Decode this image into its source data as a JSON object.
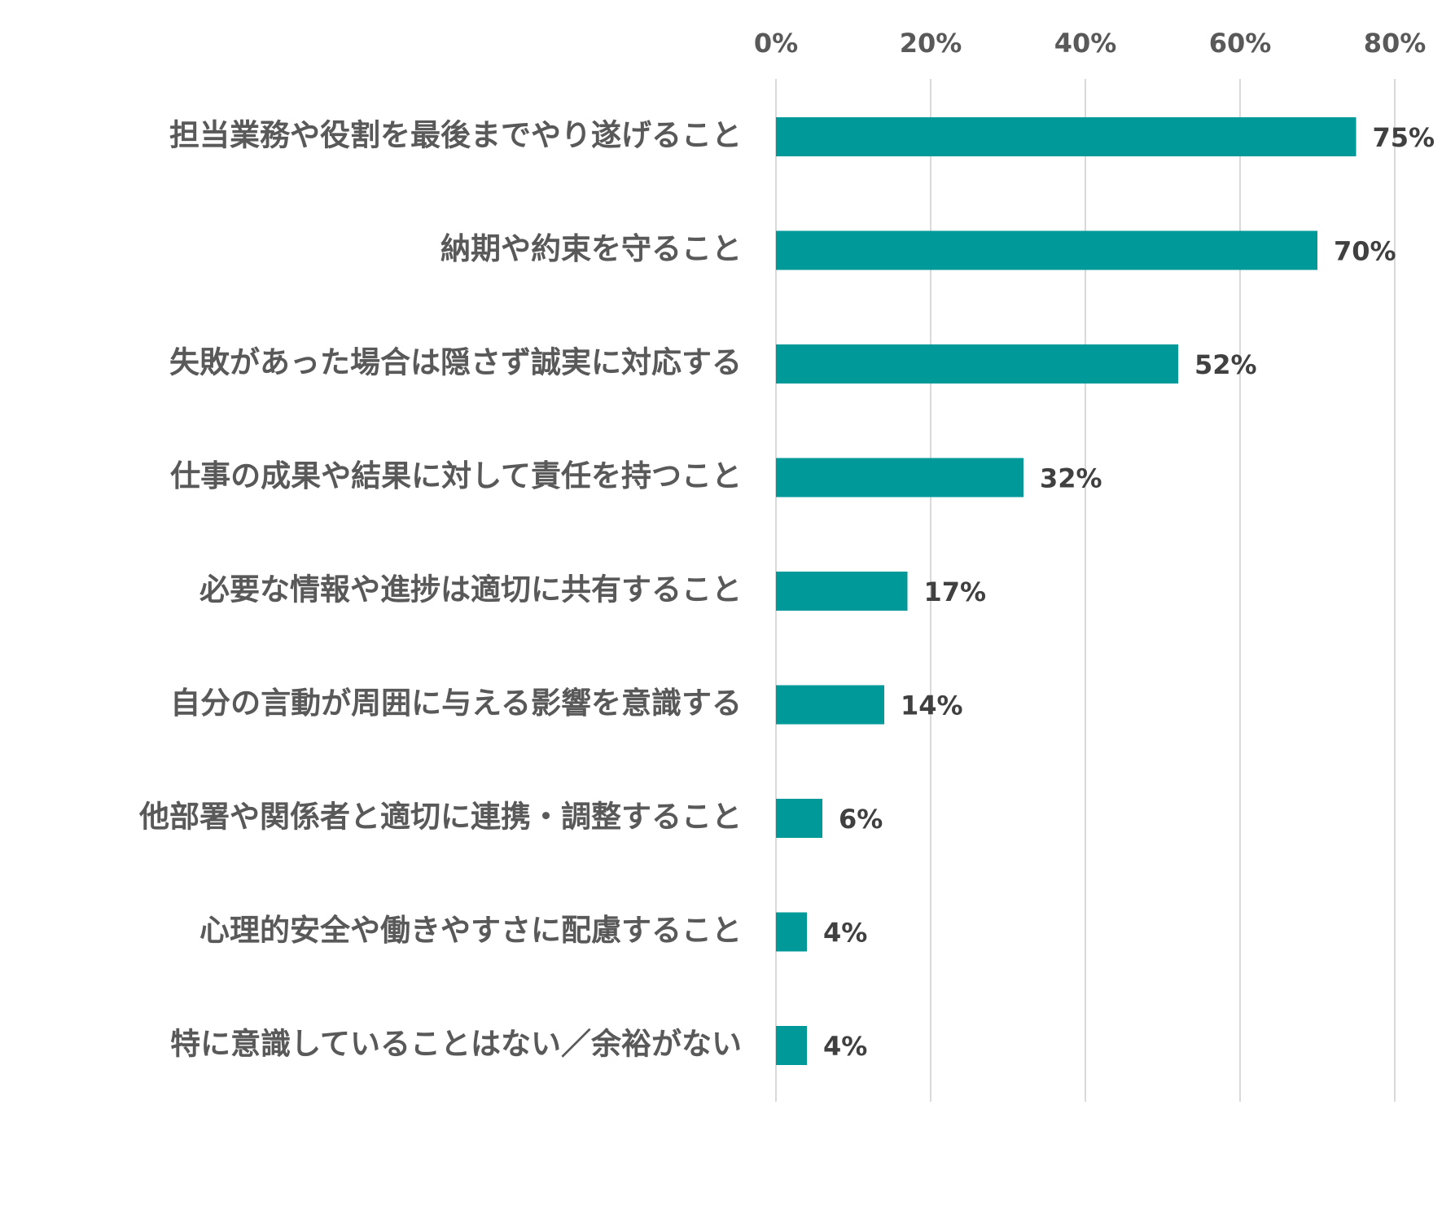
{
  "chart_data": {
    "type": "bar",
    "orientation": "horizontal",
    "categories": [
      "担当業務や役割を最後までやり遂げること",
      "納期や約束を守ること",
      "失敗があった場合は隠さず誠実に対応する",
      "仕事の成果や結果に対して責任を持つこと",
      "必要な情報や進捗は適切に共有すること",
      "自分の言動が周囲に与える影響を意識する",
      "他部署や関係者と適切に連携・調整すること",
      "心理的安全や働きやすさに配慮すること",
      "特に意識していることはない／余裕がない"
    ],
    "values": [
      75,
      70,
      52,
      32,
      17,
      14,
      6,
      4,
      4
    ],
    "value_labels": [
      "75%",
      "70%",
      "52%",
      "32%",
      "17%",
      "14%",
      "6%",
      "4%",
      "4%"
    ],
    "x_ticks": [
      0,
      20,
      40,
      60,
      80
    ],
    "x_tick_labels": [
      "0%",
      "20%",
      "40%",
      "60%",
      "80%"
    ],
    "xlim": [
      0,
      80
    ],
    "x_axis_position": "top",
    "grid": true,
    "legend": "none",
    "bar_color": "#009999",
    "title": "",
    "xlabel": "",
    "ylabel": ""
  }
}
